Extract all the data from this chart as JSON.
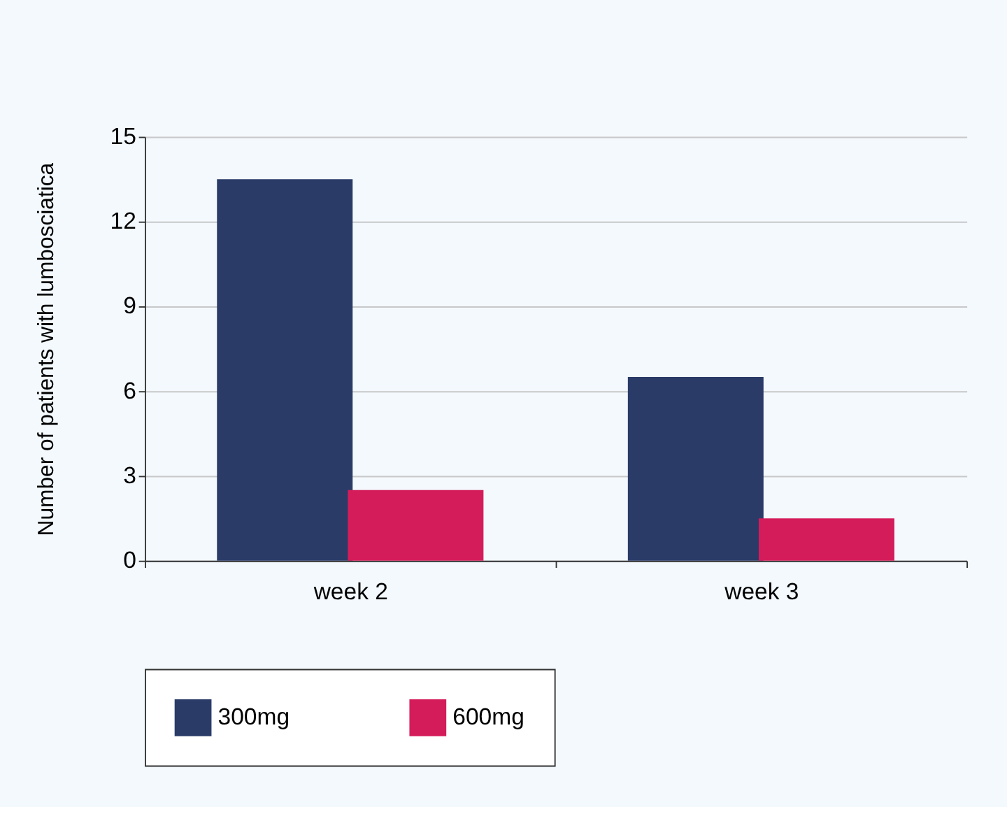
{
  "chart_data": {
    "type": "bar",
    "ylabel": "Number of patients with lumbosciatica",
    "categories": [
      "week 2",
      "week 3"
    ],
    "series": [
      {
        "name": "300mg",
        "color": "#2a3b68",
        "values": [
          13.5,
          6.5
        ]
      },
      {
        "name": "600mg",
        "color": "#d51c5a",
        "values": [
          2.5,
          1.5
        ]
      }
    ],
    "ylim": [
      0,
      15
    ],
    "yticks": [
      0,
      3,
      6,
      9,
      12,
      15
    ],
    "grid": "y",
    "legend": "bottom"
  }
}
